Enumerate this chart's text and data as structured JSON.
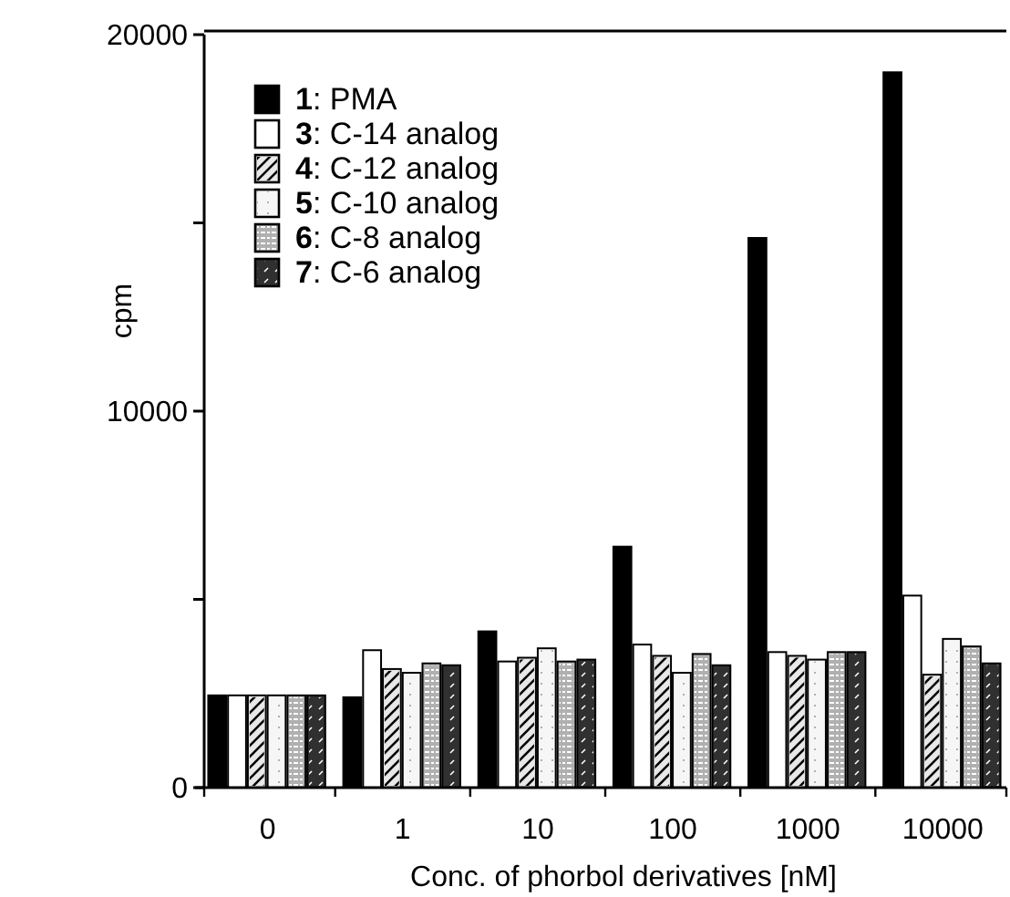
{
  "chart_data": {
    "type": "bar",
    "xlabel": "Conc. of phorbol derivatives [nM]",
    "ylabel": "cpm",
    "categories": [
      "0",
      "1",
      "10",
      "100",
      "1000",
      "10000"
    ],
    "ylim": [
      0,
      20000
    ],
    "yticks": [
      0,
      {
        "value": 5000,
        "label": null
      },
      10000,
      {
        "value": 15000,
        "label": null
      },
      20000
    ],
    "legend": "top left",
    "grid": false,
    "series": [
      {
        "name": "1: PMA",
        "color": "#000000",
        "values": [
          2450,
          2400,
          4150,
          6400,
          14600,
          19000
        ]
      },
      {
        "name": "3: C-14 analog",
        "color": "#ffffff",
        "values": [
          2450,
          3650,
          3350,
          3800,
          3600,
          5100
        ]
      },
      {
        "name": "4: C-12 analog",
        "color": "#e8e8e8",
        "values": [
          2450,
          3150,
          3450,
          3500,
          3500,
          3000
        ]
      },
      {
        "name": "5: C-10 analog",
        "color": "#f6f6f6",
        "values": [
          2450,
          3050,
          3700,
          3050,
          3400,
          3950
        ]
      },
      {
        "name": "6: C-8 analog",
        "color": "#b0b0b0",
        "values": [
          2450,
          3300,
          3350,
          3550,
          3600,
          3750
        ]
      },
      {
        "name": "7: C-6 analog",
        "color": "#303030",
        "values": [
          2450,
          3250,
          3400,
          3250,
          3600,
          3300
        ]
      }
    ]
  }
}
